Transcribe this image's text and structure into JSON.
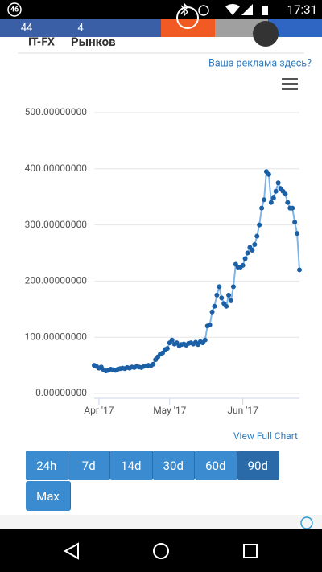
{
  "status_bar": {
    "badge": "46",
    "time": "17:31"
  },
  "tabs": [
    "44",
    "4"
  ],
  "ad": {
    "brand": "IT-FX",
    "text": "Рынков"
  },
  "ad_link": "Ваша реклама здесь?",
  "chart_data": {
    "type": "line",
    "categories": [
      null,
      null,
      "Apr '17",
      null,
      null,
      null,
      null,
      null,
      null,
      null,
      null,
      null,
      null,
      null,
      null,
      null,
      null,
      null,
      null,
      null,
      null,
      null,
      null,
      null,
      null,
      null,
      null,
      null,
      null,
      null,
      null,
      null,
      "May '17",
      null,
      null,
      null,
      null,
      null,
      null,
      null,
      null,
      null,
      null,
      null,
      null,
      null,
      null,
      null,
      null,
      null,
      null,
      null,
      null,
      null,
      null,
      null,
      null,
      null,
      null,
      null,
      null,
      null,
      null,
      "Jun '17",
      null,
      null,
      null,
      null,
      null,
      null,
      null,
      null,
      null,
      null,
      null,
      null,
      null,
      null,
      null,
      null,
      null,
      null,
      null,
      null,
      null,
      null,
      null,
      null
    ],
    "series": [
      {
        "color": "#7cb5ec",
        "marker_color": "#1b5fa5",
        "values": [
          50,
          48,
          45,
          47,
          42,
          40,
          41,
          43,
          42,
          41,
          43,
          44,
          45,
          44,
          46,
          45,
          47,
          46,
          48,
          47,
          46,
          48,
          49,
          50,
          49,
          52,
          60,
          65,
          70,
          72,
          78,
          80,
          90,
          95,
          88,
          90,
          85,
          87,
          88,
          86,
          89,
          90,
          88,
          91,
          87,
          92,
          90,
          95,
          120,
          122,
          145,
          155,
          175,
          190,
          170,
          160,
          155,
          175,
          165,
          190,
          230,
          225,
          225,
          228,
          240,
          250,
          260,
          255,
          265,
          280,
          300,
          330,
          345,
          395,
          390,
          340,
          348,
          360,
          375,
          365,
          360,
          355,
          340,
          330,
          330,
          305,
          285,
          220
        ]
      }
    ],
    "ylim": [
      0,
      500
    ],
    "yticks": [
      {
        "value": 0,
        "label": "0.00000000"
      },
      {
        "value": 100,
        "label": "100.00000000"
      },
      {
        "value": 200,
        "label": "200.00000000"
      },
      {
        "value": 300,
        "label": "300.00000000"
      },
      {
        "value": 400,
        "label": "400.00000000"
      },
      {
        "value": 500,
        "label": "500.00000000"
      }
    ],
    "grid": true
  },
  "view_full_chart": "View Full Chart",
  "range_buttons": [
    "24h",
    "7d",
    "14d",
    "30d",
    "60d",
    "90d",
    "Max"
  ],
  "active_button": 5
}
